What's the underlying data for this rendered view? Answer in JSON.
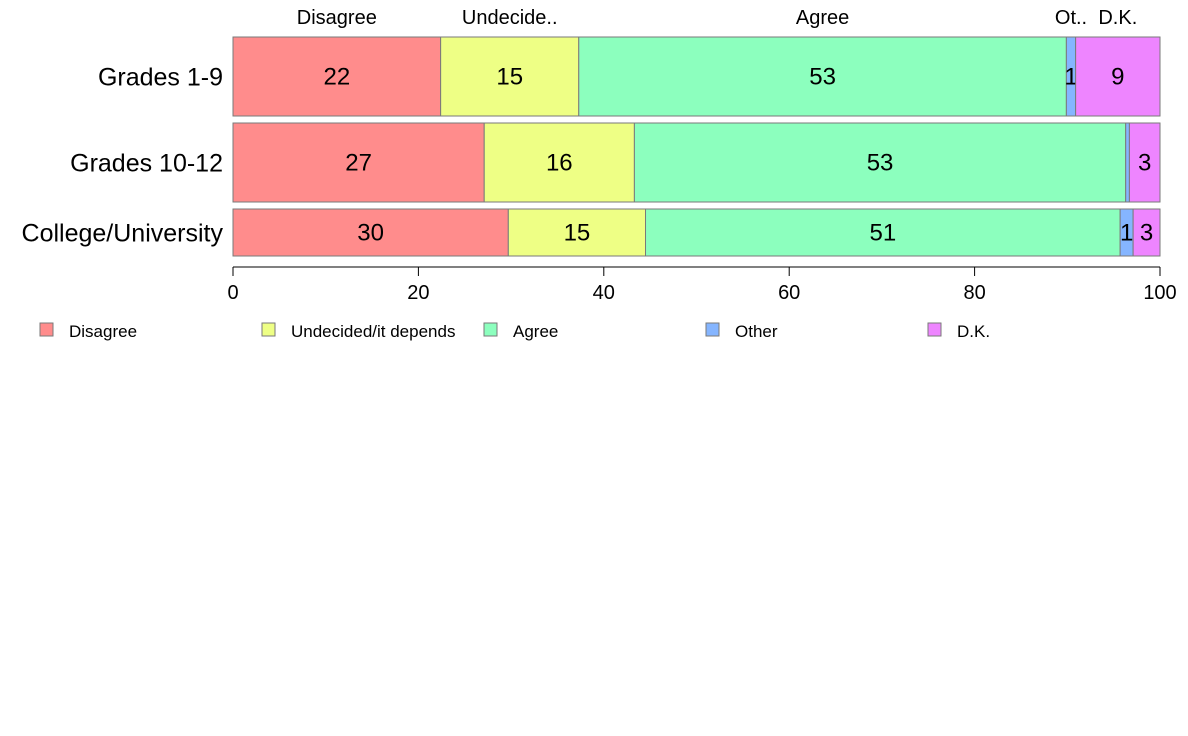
{
  "chart_data": {
    "type": "bar",
    "orientation": "horizontal",
    "stacked": true,
    "categories": [
      "Grades 1-9",
      "Grades 10-12",
      "College/University"
    ],
    "series": [
      {
        "name": "Disagree",
        "header": "Disagree",
        "color": "#FF8C8C",
        "values": [
          22.4,
          27.1,
          29.7
        ],
        "labels": [
          "22",
          "27",
          "30"
        ]
      },
      {
        "name": "Undecided/it depends",
        "header": "Undecide..",
        "color": "#EEFF85",
        "values": [
          14.9,
          16.2,
          14.8
        ],
        "labels": [
          "15",
          "16",
          "15"
        ]
      },
      {
        "name": "Agree",
        "header": "Agree",
        "color": "#8CFFBE",
        "values": [
          52.6,
          53.0,
          51.2
        ],
        "labels": [
          "53",
          "53",
          "51"
        ]
      },
      {
        "name": "Other",
        "header": "Ot..",
        "color": "#85B5FF",
        "values": [
          1.0,
          0.4,
          1.4
        ],
        "labels": [
          "1",
          "",
          "1"
        ]
      },
      {
        "name": "D.K.",
        "header": "D.K.",
        "color": "#EE85FF",
        "values": [
          9.1,
          3.3,
          2.9
        ],
        "labels": [
          "9",
          "3",
          "3"
        ]
      }
    ],
    "xlim": [
      0,
      100
    ],
    "xticks": [
      0,
      20,
      40,
      60,
      80,
      100
    ],
    "xtick_labels": [
      "0",
      "20",
      "40",
      "60",
      "80",
      "100"
    ],
    "header_row": 0,
    "grid": false,
    "legend_position": "bottom"
  }
}
